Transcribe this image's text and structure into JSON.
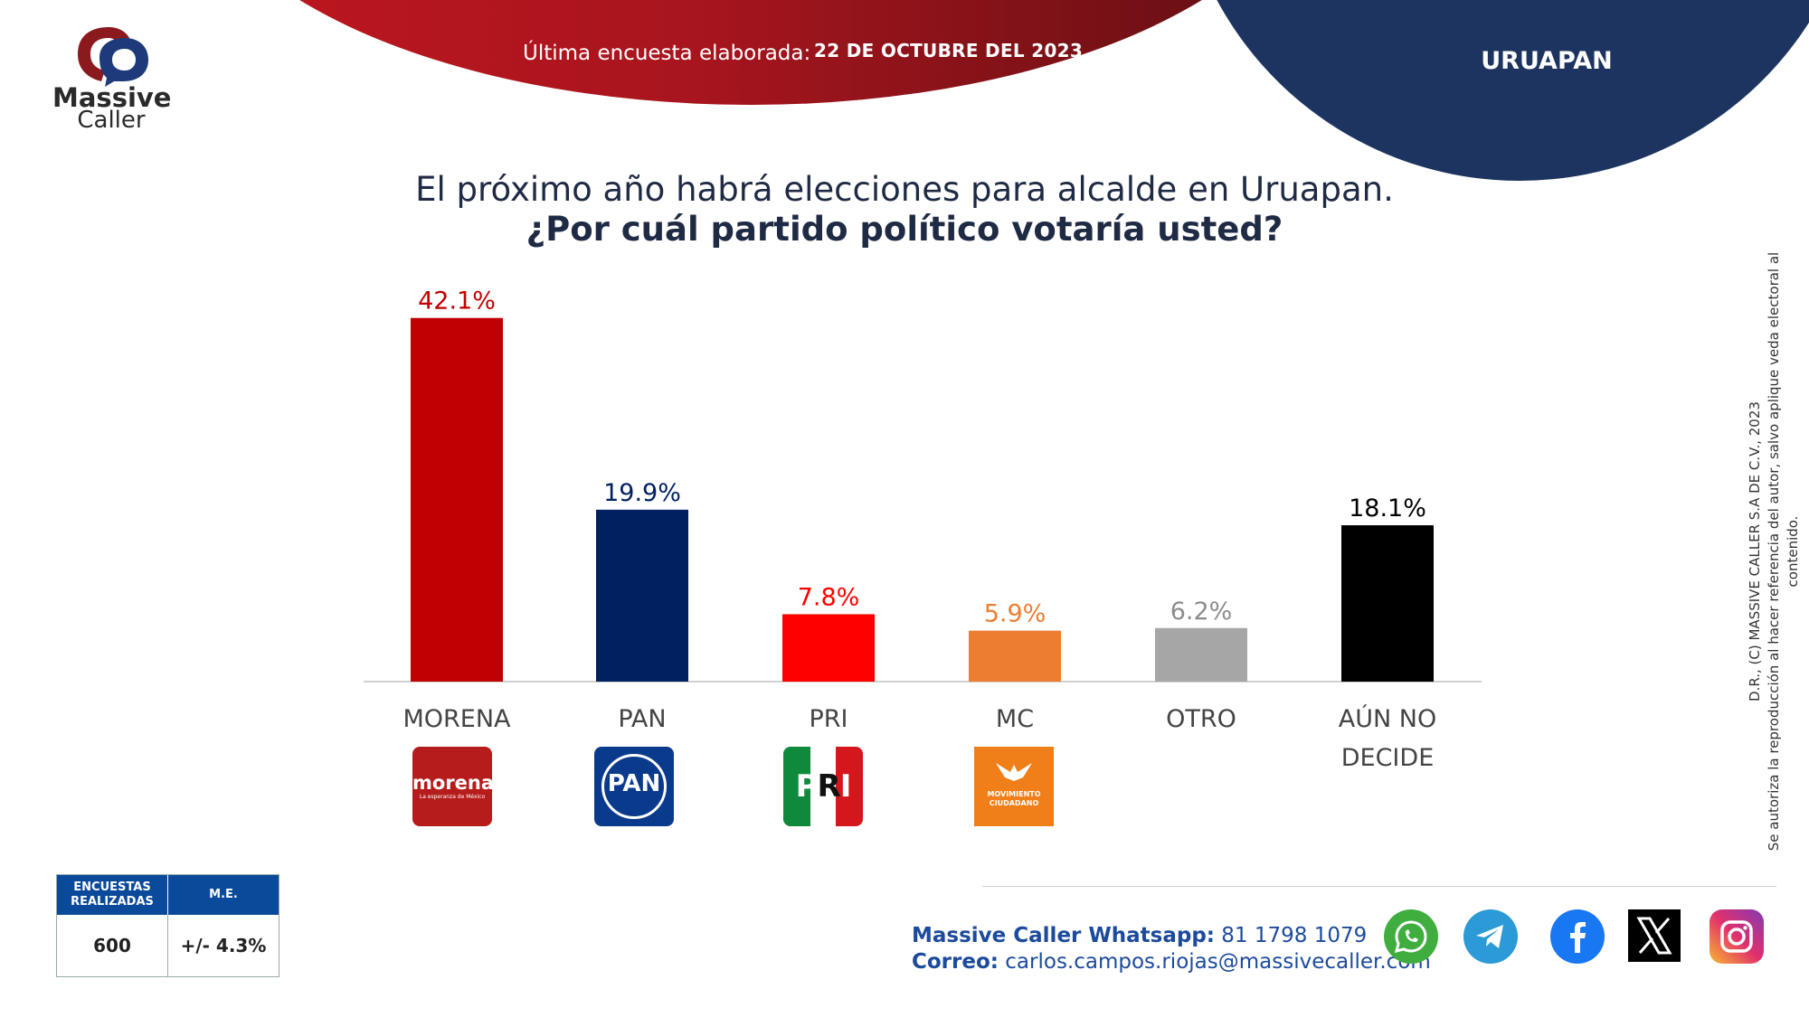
{
  "header": {
    "survey_label": "Última encuesta elaborada:",
    "survey_date": "22 DE OCTUBRE DEL 2023",
    "city": "URUAPAN",
    "colors": {
      "red": "#c0161f",
      "navy": "#1d3461"
    }
  },
  "brand": {
    "name_1": "Massive",
    "name_2": "Caller"
  },
  "title": {
    "line_1": "El próximo año habrá elecciones para alcalde en Uruapan.",
    "line_2": "¿Por cuál partido político votaría usted?"
  },
  "chart_data": {
    "type": "bar",
    "categories": [
      "MORENA",
      "PAN",
      "PRI",
      "MC",
      "OTRO",
      "AÚN NO DECIDE"
    ],
    "category_lines": [
      [
        "MORENA"
      ],
      [
        "PAN"
      ],
      [
        "PRI"
      ],
      [
        "MC"
      ],
      [
        "OTRO"
      ],
      [
        "AÚN NO",
        "DECIDE"
      ]
    ],
    "values": [
      42.1,
      19.9,
      7.8,
      5.9,
      6.2,
      18.1
    ],
    "value_labels": [
      "42.1%",
      "19.9%",
      "7.8%",
      "5.9%",
      "6.2%",
      "18.1%"
    ],
    "colors": [
      "#c00000",
      "#002060",
      "#ff0000",
      "#ed7d31",
      "#a6a6a6",
      "#000000"
    ],
    "label_colors": [
      "#c00000",
      "#002060",
      "#ff0000",
      "#ed7d31",
      "#8c8c8c",
      "#000000"
    ],
    "ylim": [
      0,
      45
    ],
    "grid": false,
    "legend": "none"
  },
  "party_logos": {
    "morena": {
      "name": "morena",
      "tagline": "La esperanza de México"
    },
    "pan": {
      "name": "PAN"
    },
    "pri": {
      "p": "P",
      "r": "R",
      "i": "I"
    },
    "mc": {
      "line_1": "MOVIMIENTO",
      "line_2": "CIUDADANO"
    }
  },
  "stats": {
    "surveys_header": "ENCUESTAS REALIZADAS",
    "me_header": "M.E.",
    "surveys_value": "600",
    "me_value": "+/- 4.3%"
  },
  "footer": {
    "whatsapp_label": "Massive Caller Whatsapp:",
    "whatsapp_number": "81 1798 1079",
    "email_label": "Correo:",
    "email": "carlos.campos.riojas@massivecaller.com",
    "social_icons": [
      "whatsapp-icon",
      "telegram-icon",
      "facebook-icon",
      "x-icon",
      "instagram-icon"
    ]
  },
  "copyright": {
    "line_1": "D.R., (C) MASSIVE CALLER S.A DE C.V., 2023",
    "line_2": "Se autoriza la reproducción al hacer referencia del autor, salvo aplique veda electoral al contenido."
  }
}
